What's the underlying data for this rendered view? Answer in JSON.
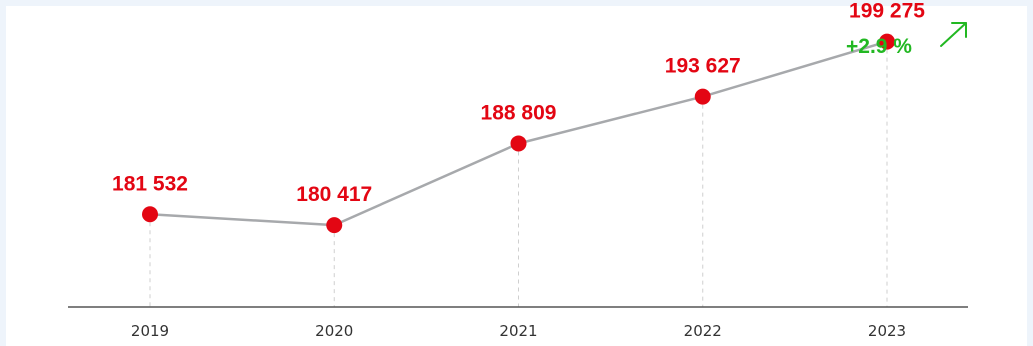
{
  "chart_data": {
    "type": "line",
    "x": [
      "2019",
      "2020",
      "2021",
      "2022",
      "2023"
    ],
    "values": [
      181532,
      180417,
      188809,
      193627,
      199275
    ],
    "data_labels": [
      "181 532",
      "180 417",
      "188 809",
      "193 627",
      "199 275"
    ],
    "annotation": "+2.9 %",
    "annotation_icon": "arrow-up-right-icon",
    "ylim": [
      172000,
      201500
    ],
    "grid": false,
    "colors": {
      "marker": "#e30613",
      "line": "#a7a9ac",
      "label": "#e30613",
      "annotation": "#22b822",
      "axis": "#555555"
    }
  }
}
